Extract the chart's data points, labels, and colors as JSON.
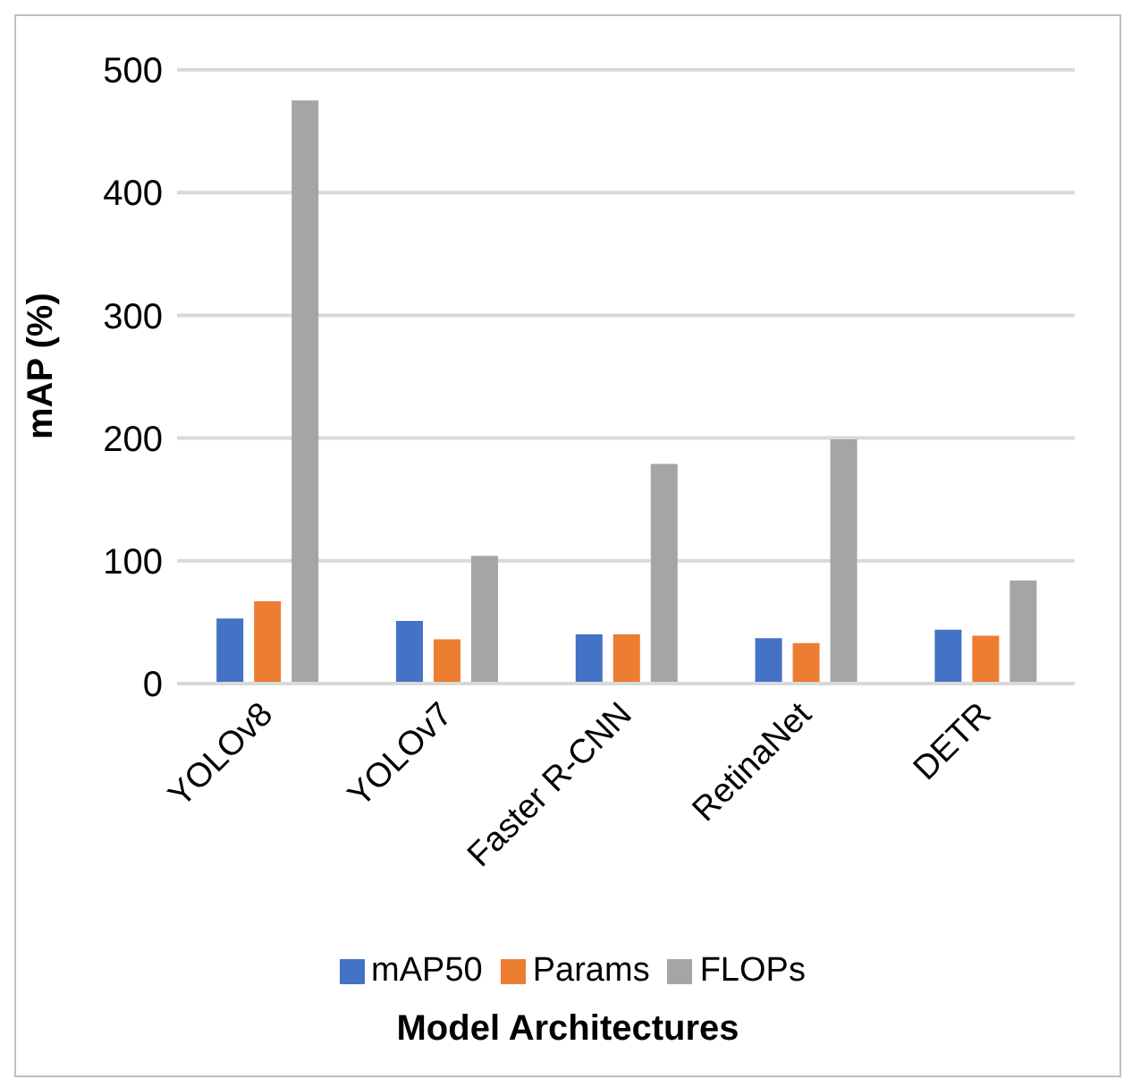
{
  "chart_data": {
    "type": "bar",
    "xlabel": "Model Architectures",
    "ylabel": "mAP (%)",
    "categories": [
      "YOLOv8",
      "YOLOv7",
      "Faster R-CNN",
      "RetinaNet",
      "DETR"
    ],
    "series": [
      {
        "name": "mAP50",
        "color": "#4472c4",
        "values": [
          53,
          51,
          40,
          37,
          44
        ]
      },
      {
        "name": "Params",
        "color": "#ed7d31",
        "values": [
          67,
          36,
          40,
          33,
          39
        ]
      },
      {
        "name": "FLOPs",
        "color": "#a5a5a5",
        "values": [
          475,
          104,
          179,
          199,
          84
        ]
      }
    ],
    "ylim": [
      0,
      500
    ],
    "yticks": [
      0,
      100,
      200,
      300,
      400,
      500
    ],
    "grid": "y",
    "legend": "bottom"
  }
}
